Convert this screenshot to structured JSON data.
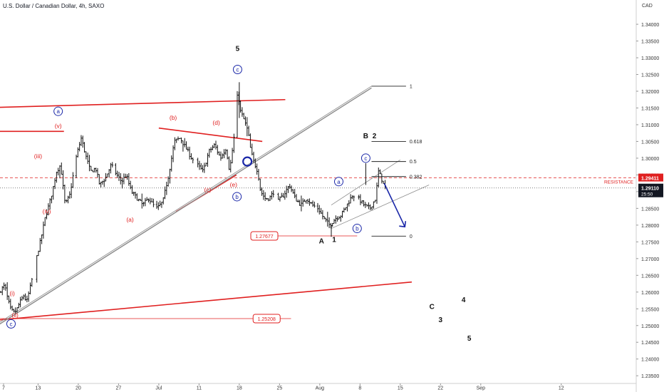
{
  "header": {
    "title": "U.S. Dollar / Canadian Dollar, 4h, SAXO"
  },
  "colors": {
    "candle": "#111111",
    "red": "#e02020",
    "blue": "#1a27a8",
    "trend": "#8c8c8c",
    "fib": "#222222",
    "axis_text": "#333333",
    "grid": "#d8d8d8"
  },
  "chart_data": {
    "type": "candlestick",
    "title": "U.S. Dollar / Canadian Dollar, 4h, SAXO",
    "y_axis": {
      "currency": "CAD",
      "range": [
        1.2327,
        1.3447
      ],
      "ticks": [
        "1.34000",
        "1.33500",
        "1.33000",
        "1.32500",
        "1.32000",
        "1.31500",
        "1.31000",
        "1.30500",
        "1.30000",
        "1.29500",
        "1.29000",
        "1.28500",
        "1.28000",
        "1.27500",
        "1.27000",
        "1.26500",
        "1.26000",
        "1.25500",
        "1.25000",
        "1.24500",
        "1.24000",
        "1.23500"
      ],
      "tick_values": [
        1.34,
        1.335,
        1.33,
        1.325,
        1.32,
        1.315,
        1.31,
        1.305,
        1.3,
        1.295,
        1.29,
        1.285,
        1.28,
        1.275,
        1.27,
        1.265,
        1.26,
        1.255,
        1.25,
        1.245,
        1.24,
        1.235
      ]
    },
    "x_axis": {
      "ticks": [
        "7",
        "13",
        "20",
        "27",
        "Jul",
        "11",
        "18",
        "25",
        "Aug",
        "8",
        "15",
        "22",
        "Sep",
        "12"
      ],
      "tick_days": [
        0,
        6,
        13,
        20,
        27,
        34,
        41,
        48,
        55,
        62,
        69,
        76,
        83,
        97
      ]
    },
    "price_tags": {
      "resistance": {
        "label": "RESISTANCE",
        "value": "1.29411",
        "price": 1.29411
      },
      "last": {
        "value": "1.29110",
        "countdown": "25:50",
        "price": 1.2911
      }
    },
    "price_path": [
      [
        -0.5,
        1.26
      ],
      [
        0.5,
        1.262
      ],
      [
        1.0,
        1.258
      ],
      [
        1.5,
        1.255
      ],
      [
        2.0,
        1.2538
      ],
      [
        2.5,
        1.2545
      ],
      [
        3.0,
        1.2565
      ],
      [
        3.8,
        1.259
      ],
      [
        4.3,
        1.257
      ],
      [
        5.0,
        1.262
      ],
      [
        6.0,
        1.27
      ],
      [
        6.8,
        1.276
      ],
      [
        7.5,
        1.282
      ],
      [
        8.5,
        1.288
      ],
      [
        9.5,
        1.296
      ],
      [
        10.2,
        1.298
      ],
      [
        11.0,
        1.286
      ],
      [
        11.8,
        1.289
      ],
      [
        12.5,
        1.296
      ],
      [
        13.0,
        1.301
      ],
      [
        13.8,
        1.306
      ],
      [
        14.7,
        1.3
      ],
      [
        15.4,
        1.296
      ],
      [
        16.3,
        1.297
      ],
      [
        17.0,
        1.292
      ],
      [
        18.0,
        1.294
      ],
      [
        19.0,
        1.298
      ],
      [
        20.0,
        1.295
      ],
      [
        20.8,
        1.293
      ],
      [
        21.6,
        1.295
      ],
      [
        22.5,
        1.29
      ],
      [
        23.5,
        1.288
      ],
      [
        24.5,
        1.286
      ],
      [
        25.5,
        1.288
      ],
      [
        26.3,
        1.286
      ],
      [
        27.0,
        1.285
      ],
      [
        28.0,
        1.287
      ],
      [
        29.0,
        1.295
      ],
      [
        30.0,
        1.305
      ],
      [
        31.0,
        1.306
      ],
      [
        32.0,
        1.303
      ],
      [
        33.0,
        1.3
      ],
      [
        34.0,
        1.298
      ],
      [
        35.0,
        1.296
      ],
      [
        36.0,
        1.302
      ],
      [
        37.0,
        1.304
      ],
      [
        38.0,
        1.3
      ],
      [
        39.0,
        1.303
      ],
      [
        39.6,
        1.296
      ],
      [
        40.5,
        1.308
      ],
      [
        41.0,
        1.32
      ],
      [
        41.5,
        1.314
      ],
      [
        42.0,
        1.312
      ],
      [
        42.8,
        1.308
      ],
      [
        43.3,
        1.302
      ],
      [
        43.8,
        1.299
      ],
      [
        44.5,
        1.296
      ],
      [
        45.0,
        1.29
      ],
      [
        45.8,
        1.288
      ],
      [
        46.5,
        1.288
      ],
      [
        47.3,
        1.29
      ],
      [
        48.0,
        1.287
      ],
      [
        49.0,
        1.289
      ],
      [
        50.0,
        1.292
      ],
      [
        51.0,
        1.288
      ],
      [
        52.0,
        1.286
      ],
      [
        53.0,
        1.288
      ],
      [
        54.0,
        1.286
      ],
      [
        55.0,
        1.285
      ],
      [
        56.0,
        1.282
      ],
      [
        57.0,
        1.28
      ],
      [
        58.0,
        1.282
      ],
      [
        59.0,
        1.283
      ],
      [
        60.0,
        1.286
      ],
      [
        61.0,
        1.289
      ],
      [
        62.0,
        1.288
      ],
      [
        63.0,
        1.286
      ],
      [
        64.0,
        1.285
      ],
      [
        65.0,
        1.288
      ],
      [
        65.5,
        1.296
      ],
      [
        66.0,
        1.294
      ],
      [
        66.5,
        1.2915
      ]
    ],
    "trendlines": [
      {
        "style": "red",
        "from": [
          -5,
          1.315
        ],
        "to": [
          49,
          1.3175
        ]
      },
      {
        "style": "red",
        "from": [
          -5,
          1.251
        ],
        "to": [
          71,
          1.263
        ]
      },
      {
        "style": "red",
        "from": [
          -5,
          1.308
        ],
        "to": [
          10.5,
          1.308
        ]
      },
      {
        "style": "red",
        "from": [
          27,
          1.309
        ],
        "to": [
          45,
          1.305
        ]
      },
      {
        "style": "red",
        "from": [
          30,
          1.284
        ],
        "to": [
          40.5,
          1.295
        ]
      },
      {
        "style": "red-thin",
        "from": [
          -1,
          1.25208
        ],
        "to": [
          50,
          1.25208
        ]
      },
      {
        "style": "red-thin",
        "from": [
          47.5,
          1.27677
        ],
        "to": [
          61.5,
          1.27677
        ]
      },
      {
        "style": "trend",
        "from": [
          -2,
          1.249
        ],
        "to": [
          64,
          1.321
        ]
      },
      {
        "style": "trend-thin",
        "from": [
          57,
          1.279
        ],
        "to": [
          74,
          1.292
        ]
      },
      {
        "style": "trend-thin",
        "from": [
          57,
          1.286
        ],
        "to": [
          69,
          1.2995
        ]
      }
    ],
    "fib_levels": [
      {
        "label": "1",
        "price": 1.3215,
        "from": 64,
        "to": 70
      },
      {
        "label": "0.618",
        "price": 1.305,
        "from": 64,
        "to": 70
      },
      {
        "label": "0.5",
        "price": 1.299,
        "from": 64,
        "to": 70
      },
      {
        "label": "0.382",
        "price": 1.2945,
        "from": 64,
        "to": 70
      },
      {
        "label": "0",
        "price": 1.2767,
        "from": 64,
        "to": 70
      }
    ],
    "labels": [
      {
        "text": "(i)",
        "day": 1.5,
        "price": 1.259,
        "color": "red"
      },
      {
        "text": "(ii)",
        "day": 2.0,
        "price": 1.2525,
        "color": "red"
      },
      {
        "text": "(iii)",
        "day": 6.0,
        "price": 1.3,
        "color": "red"
      },
      {
        "text": "(iv)",
        "day": 7.5,
        "price": 1.2835,
        "color": "red"
      },
      {
        "text": "(v)",
        "day": 9.5,
        "price": 1.309,
        "color": "red"
      },
      {
        "text": "(a)",
        "day": 22.0,
        "price": 1.281,
        "color": "red"
      },
      {
        "text": "(b)",
        "day": 29.5,
        "price": 1.3115,
        "color": "red"
      },
      {
        "text": "(c)",
        "day": 35.5,
        "price": 1.29,
        "color": "red"
      },
      {
        "text": "(d)",
        "day": 37.0,
        "price": 1.31,
        "color": "red"
      },
      {
        "text": "(e)",
        "day": 40.0,
        "price": 1.2915,
        "color": "red"
      },
      {
        "text": "5",
        "day": 40.7,
        "price": 1.332,
        "color": "black"
      },
      {
        "text": "A",
        "day": 55.3,
        "price": 1.2745,
        "color": "black"
      },
      {
        "text": "1",
        "day": 57.5,
        "price": 1.275,
        "color": "black"
      },
      {
        "text": "B",
        "day": 63.0,
        "price": 1.306,
        "color": "black"
      },
      {
        "text": "2",
        "day": 64.5,
        "price": 1.306,
        "color": "black"
      },
      {
        "text": "4",
        "day": -1.5,
        "price": 1.246,
        "color": "black"
      },
      {
        "text": "C",
        "day": 74.5,
        "price": 1.255,
        "color": "black"
      },
      {
        "text": "3",
        "day": 76.0,
        "price": 1.251,
        "color": "black"
      },
      {
        "text": "4",
        "day": 80.0,
        "price": 1.257,
        "color": "black"
      },
      {
        "text": "5",
        "day": 81.0,
        "price": 1.2455,
        "color": "black"
      }
    ],
    "circle_labels": [
      {
        "text": "a",
        "day": 9.5,
        "price": 1.314
      },
      {
        "text": "c",
        "day": 1.3,
        "price": 1.2505
      },
      {
        "text": "c",
        "day": 40.7,
        "price": 1.3265
      },
      {
        "text": "b",
        "day": 40.6,
        "price": 1.2885
      },
      {
        "text": "a",
        "day": 58.3,
        "price": 1.293
      },
      {
        "text": "b",
        "day": 61.5,
        "price": 1.279
      },
      {
        "text": "c",
        "day": 63.0,
        "price": 1.3
      }
    ],
    "boxed_labels": [
      {
        "text": "1.27677",
        "day": 43.0,
        "price": 1.27677
      },
      {
        "text": "1.25208",
        "day": 43.4,
        "price": 1.25208
      }
    ],
    "marker_circle": {
      "day": 42.4,
      "price": 1.299
    },
    "forecast_arrow": {
      "from": [
        66.2,
        1.2925
      ],
      "to": [
        69.8,
        1.2795
      ]
    }
  }
}
